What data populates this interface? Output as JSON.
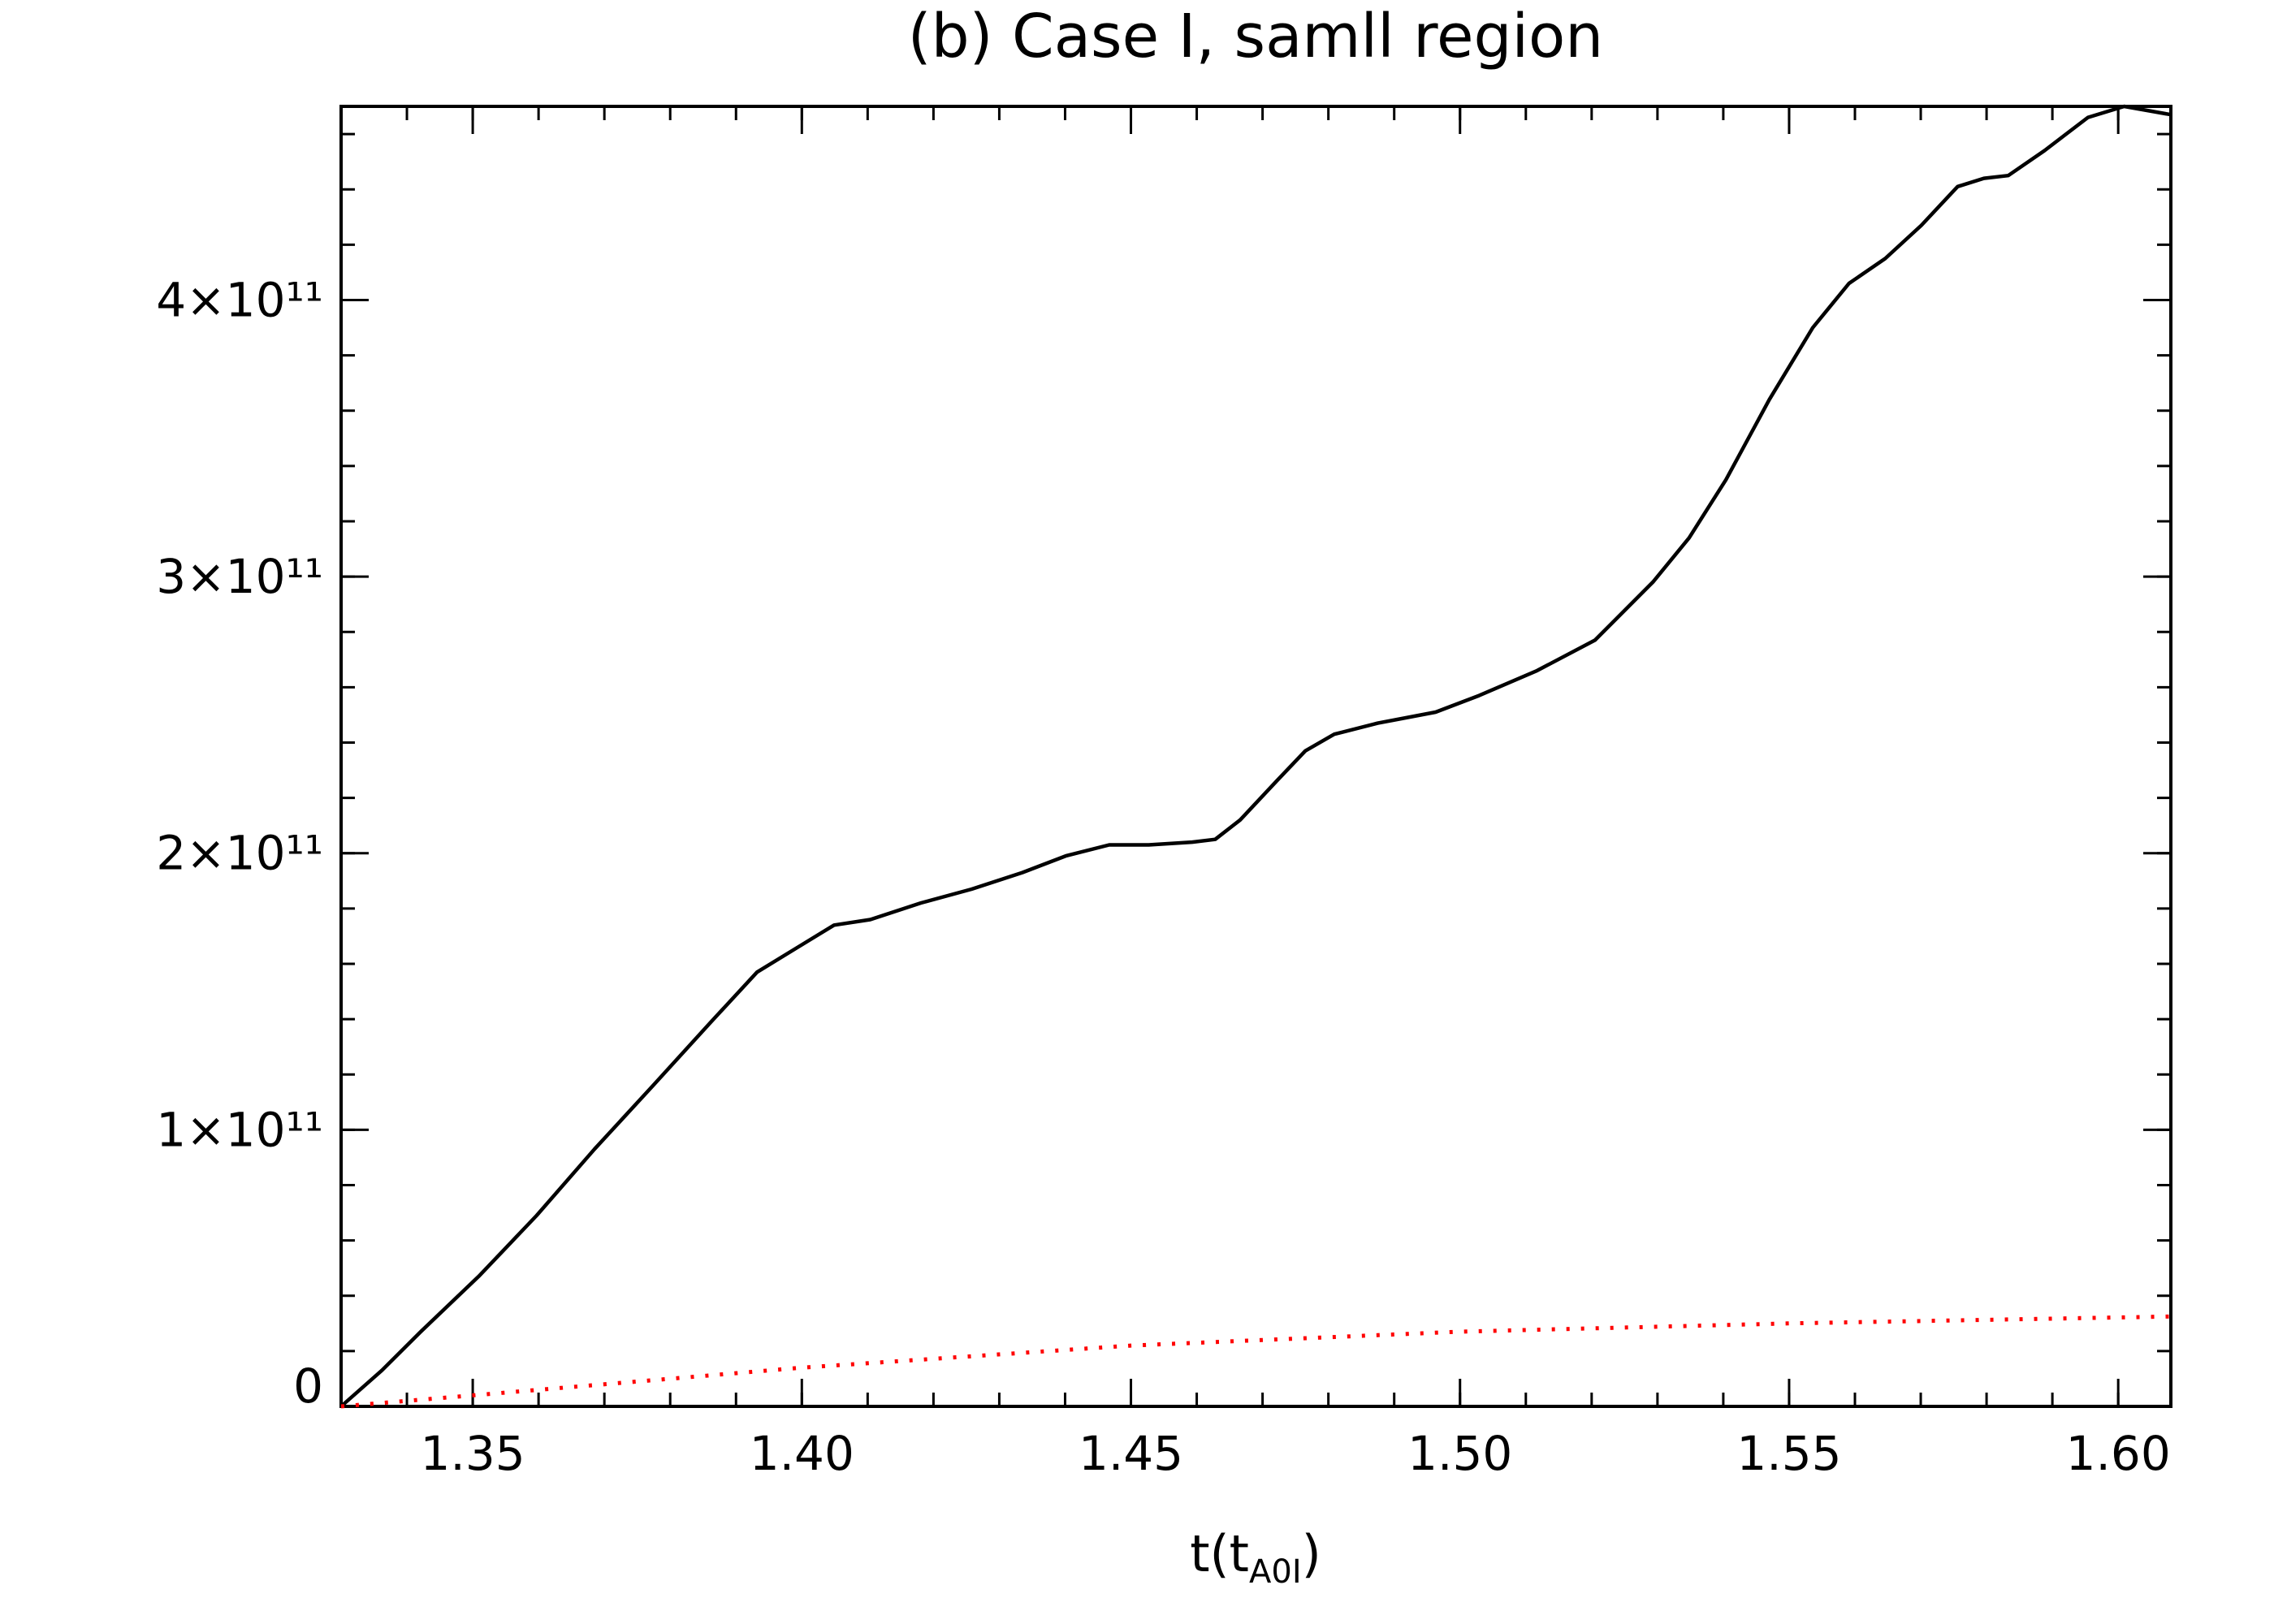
{
  "chart_data": {
    "type": "line",
    "title": "(b) Case I, samll region",
    "x_label": [
      "t(t",
      "A0I",
      ")"
    ],
    "xlim": [
      1.33,
      1.608
    ],
    "xticks": [
      {
        "value": 1.35,
        "label": "1.35"
      },
      {
        "value": 1.4,
        "label": "1.40"
      },
      {
        "value": 1.45,
        "label": "1.45"
      },
      {
        "value": 1.5,
        "label": "1.50"
      },
      {
        "value": 1.55,
        "label": "1.55"
      },
      {
        "value": 1.6,
        "label": "1.60"
      }
    ],
    "ylim": [
      0,
      470000000000.0
    ],
    "yticks": [
      0,
      {
        "value": 100000000000.0,
        "label": "1×10¹¹"
      },
      {
        "value": 200000000000.0,
        "label": "2×10¹¹"
      },
      {
        "value": 300000000000.0,
        "label": "3×10¹¹"
      },
      {
        "value": 400000000000.0,
        "label": "4×10¹¹"
      }
    ],
    "minor_divisions": {
      "x": 5,
      "y": 5
    },
    "grid": false,
    "series": [
      {
        "color": "#000000",
        "dash": false,
        "x": [
          1.33,
          1.3362,
          1.3421,
          1.3509,
          1.3597,
          1.3685,
          1.3774,
          1.3862,
          1.3932,
          1.3994,
          1.4049,
          1.4104,
          1.4181,
          1.4258,
          1.4335,
          1.4401,
          1.4467,
          1.4527,
          1.4593,
          1.4628,
          1.4666,
          1.4721,
          1.4765,
          1.4809,
          1.4875,
          1.4963,
          1.5029,
          1.5117,
          1.5205,
          1.5293,
          1.5348,
          1.5404,
          1.547,
          1.5536,
          1.5591,
          1.5646,
          1.5701,
          1.5756,
          1.5796,
          1.5833,
          1.5888,
          1.5954,
          1.6009,
          1.608
        ],
        "values": [
          0,
          13000000000.0,
          27000000000.0,
          47000000000.0,
          69000000000.0,
          93000000000.0,
          116000000000.0,
          139000000000.0,
          157000000000.0,
          166000000000.0,
          174000000000.0,
          176000000000.0,
          182000000000.0,
          187000000000.0,
          193000000000.0,
          199000000000.0,
          203000000000.0,
          203000000000.0,
          204000000000.0,
          205000000000.0,
          212000000000.0,
          226000000000.0,
          237000000000.0,
          243000000000.0,
          247000000000.0,
          251000000000.0,
          257000000000.0,
          266000000000.0,
          277000000000.0,
          298000000000.0,
          314000000000.0,
          335000000000.0,
          364000000000.0,
          390000000000.0,
          406000000000.0,
          415000000000.0,
          427000000000.0,
          441000000000.0,
          444000000000.0,
          445000000000.0,
          454000000000.0,
          466000000000.0,
          470000000000.0,
          467000000000.0
        ]
      },
      {
        "color": "#ff0000",
        "dash": true,
        "x": [
          1.33,
          1.35,
          1.4,
          1.45,
          1.5,
          1.55,
          1.608
        ],
        "values": [
          0,
          4000000000.0,
          14000000000.0,
          22000000000.0,
          27000000000.0,
          30000000000.0,
          32500000000.0
        ]
      }
    ]
  }
}
